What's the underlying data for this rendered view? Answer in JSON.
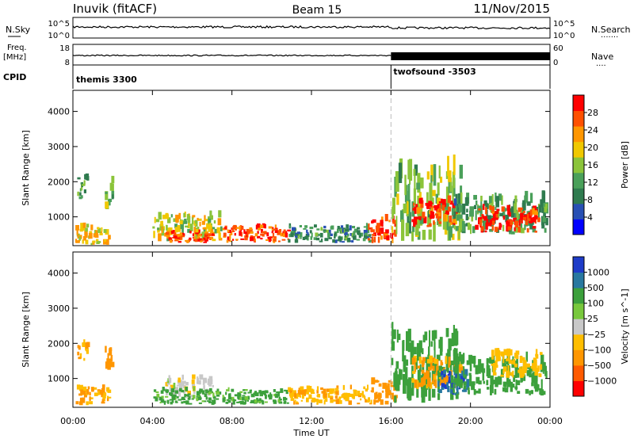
{
  "header": {
    "station": "Inuvik (fitACF)",
    "beam": "Beam 15",
    "date": "11/Nov/2015"
  },
  "side_labels": {
    "nsky": "N.Sky",
    "nsearch": "N.Search",
    "nsearch_dots": "·······",
    "freq": "Freq.",
    "freq_unit": "[MHz]",
    "cpid": "CPID",
    "nave": "Nave",
    "nave_dots": "····"
  },
  "noise_panel": {
    "left_ticks": [
      "10^5",
      "10^0"
    ],
    "right_ticks": [
      "10^5",
      "10^0"
    ]
  },
  "freq_panel": {
    "left_ticks": [
      "18",
      "8"
    ],
    "right_ticks": [
      "60",
      "0"
    ]
  },
  "cpid_panel": {
    "programs": [
      {
        "name": "themis 3300",
        "start_hour": 0
      },
      {
        "name": "twofsound -3503",
        "start_hour": 16
      }
    ]
  },
  "colors": {
    "power_scale": [
      "#0000ff",
      "#2850b4",
      "#2f7b4f",
      "#4aa05a",
      "#8bc43a",
      "#f0c800",
      "#ff9600",
      "#ff5000",
      "#ff0000"
    ],
    "velocity_scale": [
      "#ff0000",
      "#ff5a00",
      "#ff9600",
      "#ffbe00",
      "#c8c8c8",
      "#78c83c",
      "#3ca03c",
      "#2878a0",
      "#1e3cc8"
    ],
    "ground_scatter": "#c8c8c8",
    "marker_line": "#bbbbbb"
  },
  "chart_data": [
    {
      "type": "heatmap",
      "title": "",
      "xlabel": "Time UT",
      "ylabel": "Slant Range [km]",
      "xlim": [
        0,
        24
      ],
      "ylim": [
        180,
        4600
      ],
      "x_ticks": [
        "00:00",
        "04:00",
        "08:00",
        "12:00",
        "16:00",
        "20:00",
        "00:00"
      ],
      "y_ticks": [
        "1000",
        "2000",
        "3000",
        "4000"
      ],
      "colorbar_label": "Power [dB]",
      "colorbar_ticks": [
        "4",
        "8",
        "12",
        "16",
        "20",
        "24",
        "28"
      ],
      "colorbar_range": [
        0,
        32
      ],
      "scatter_regions": [
        {
          "t0": 0.1,
          "t1": 1.8,
          "r0": 200,
          "r1": 700,
          "value": 20
        },
        {
          "t0": 0.2,
          "t1": 0.7,
          "r0": 1500,
          "r1": 2100,
          "value": 12
        },
        {
          "t0": 1.6,
          "t1": 2.0,
          "r0": 1200,
          "r1": 2000,
          "value": 14
        },
        {
          "t0": 4.0,
          "t1": 7.5,
          "r0": 300,
          "r1": 1000,
          "value": 18
        },
        {
          "t0": 4.6,
          "t1": 7.0,
          "r0": 250,
          "r1": 550,
          "value": 28
        },
        {
          "t0": 7.5,
          "t1": 10.8,
          "r0": 250,
          "r1": 700,
          "value": 27
        },
        {
          "t0": 10.8,
          "t1": 15.0,
          "r0": 250,
          "r1": 700,
          "value": 10
        },
        {
          "t0": 14.8,
          "t1": 16.2,
          "r0": 250,
          "r1": 900,
          "value": 28
        },
        {
          "t0": 16.0,
          "t1": 19.5,
          "r0": 300,
          "r1": 2200,
          "value": 15
        },
        {
          "t0": 17.0,
          "t1": 19.2,
          "r0": 700,
          "r1": 1400,
          "value": 28
        },
        {
          "t0": 19.0,
          "t1": 23.8,
          "r0": 500,
          "r1": 1500,
          "value": 12
        },
        {
          "t0": 20.2,
          "t1": 23.4,
          "r0": 550,
          "r1": 1200,
          "value": 29
        }
      ]
    },
    {
      "type": "heatmap",
      "title": "",
      "xlabel": "Time UT",
      "ylabel": "Slant Range [km]",
      "xlim": [
        0,
        24
      ],
      "ylim": [
        180,
        4600
      ],
      "x_ticks": [
        "00:00",
        "04:00",
        "08:00",
        "12:00",
        "16:00",
        "20:00",
        "00:00"
      ],
      "y_ticks": [
        "1000",
        "2000",
        "3000",
        "4000"
      ],
      "colorbar_label": "Velocity [m s^-1]",
      "colorbar_ticks": [
        "1000",
        "500",
        "100",
        "25",
        "−25",
        "−100",
        "−500",
        "−1000"
      ],
      "scatter_regions": [
        {
          "t0": 0.1,
          "t1": 1.8,
          "r0": 200,
          "r1": 700,
          "value": -100
        },
        {
          "t0": 0.2,
          "t1": 0.7,
          "r0": 1500,
          "r1": 2100,
          "value": -100
        },
        {
          "t0": 1.6,
          "t1": 2.0,
          "r0": 1200,
          "r1": 2000,
          "value": -300
        },
        {
          "t0": 4.6,
          "t1": 7.0,
          "r0": 450,
          "r1": 1000,
          "value": 0
        },
        {
          "t0": 4.0,
          "t1": 10.8,
          "r0": 250,
          "r1": 650,
          "value": 150
        },
        {
          "t0": 10.8,
          "t1": 15.0,
          "r0": 250,
          "r1": 700,
          "value": -80
        },
        {
          "t0": 15.0,
          "t1": 16.2,
          "r0": 250,
          "r1": 900,
          "value": -200
        },
        {
          "t0": 16.0,
          "t1": 19.5,
          "r0": 300,
          "r1": 2200,
          "value": 200
        },
        {
          "t0": 17.0,
          "t1": 19.5,
          "r0": 700,
          "r1": 1500,
          "value": -150
        },
        {
          "t0": 18.2,
          "t1": 19.8,
          "r0": 500,
          "r1": 1100,
          "value": 900
        },
        {
          "t0": 19.0,
          "t1": 23.8,
          "r0": 500,
          "r1": 1500,
          "value": 250
        },
        {
          "t0": 21.0,
          "t1": 23.5,
          "r0": 1000,
          "r1": 1700,
          "value": -60
        }
      ]
    }
  ]
}
